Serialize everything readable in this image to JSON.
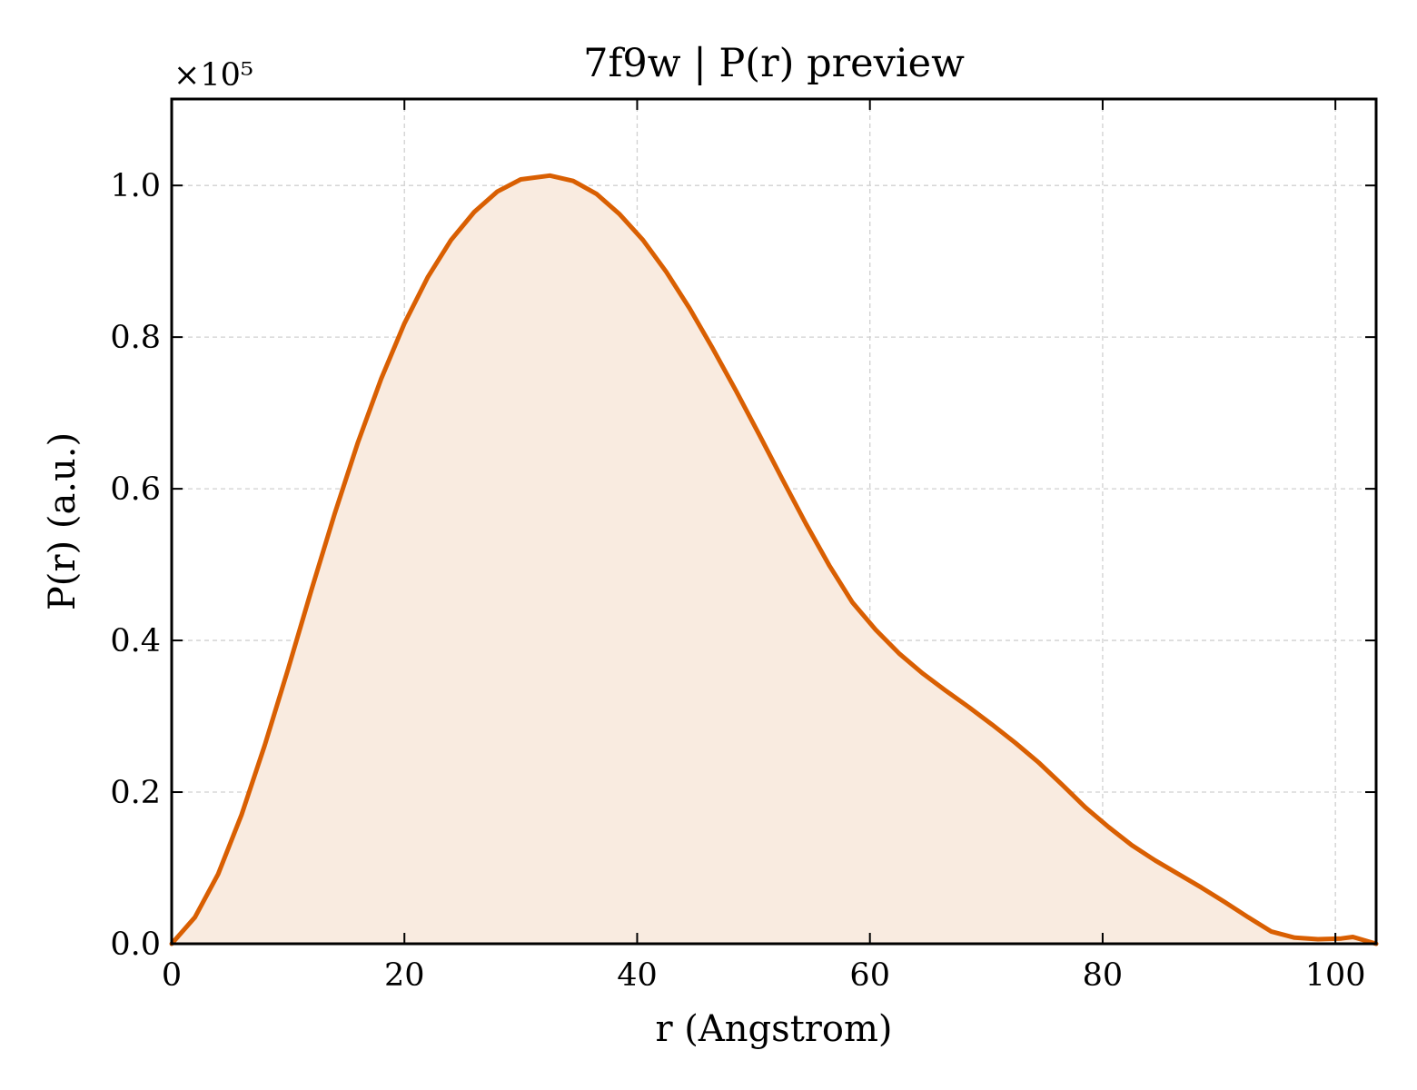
{
  "chart_data": {
    "type": "area",
    "title": "7f9w | P(r) preview",
    "xlabel": "r (Angstrom)",
    "ylabel": "P(r) (a.u.)",
    "y_multiplier": "×10⁵",
    "xlim": [
      0,
      103.5
    ],
    "ylim": [
      0,
      1.114
    ],
    "xticks": [
      0,
      20,
      40,
      60,
      80,
      100
    ],
    "xtick_labels": [
      "0",
      "20",
      "40",
      "60",
      "80",
      "100"
    ],
    "yticks": [
      0.0,
      0.2,
      0.4,
      0.6,
      0.8,
      1.0
    ],
    "ytick_labels": [
      "0.0",
      "0.2",
      "0.4",
      "0.6",
      "0.8",
      "1.0"
    ],
    "grid": true,
    "line_color": "#d95f02",
    "fill_color": "#f9ebe0",
    "series": [
      {
        "x": [
          0,
          2,
          4,
          6,
          8,
          10,
          12,
          14,
          16,
          18,
          20,
          22,
          24,
          26,
          28,
          30,
          32.5,
          34.5,
          36.5,
          38.5,
          40.5,
          42.5,
          44.5,
          46.5,
          48.5,
          50.5,
          52.5,
          54.5,
          56.5,
          58.5,
          60.5,
          62.5,
          64.5,
          66.5,
          68.5,
          70.5,
          72.5,
          74.5,
          76.5,
          78.5,
          80.5,
          82.5,
          84.5,
          86.5,
          88.5,
          90.5,
          92.5,
          94.5,
          96.5,
          98.5,
          100.5,
          101.5,
          103.5
        ],
        "y": [
          0.0,
          0.035,
          0.092,
          0.17,
          0.262,
          0.362,
          0.466,
          0.567,
          0.661,
          0.745,
          0.818,
          0.879,
          0.928,
          0.965,
          0.992,
          1.008,
          1.013,
          1.006,
          0.989,
          0.962,
          0.928,
          0.886,
          0.838,
          0.785,
          0.729,
          0.671,
          0.612,
          0.554,
          0.499,
          0.45,
          0.414,
          0.383,
          0.357,
          0.334,
          0.312,
          0.289,
          0.265,
          0.239,
          0.21,
          0.18,
          0.154,
          0.13,
          0.11,
          0.092,
          0.074,
          0.055,
          0.035,
          0.016,
          0.008,
          0.006,
          0.007,
          0.009,
          0.0
        ]
      }
    ]
  }
}
